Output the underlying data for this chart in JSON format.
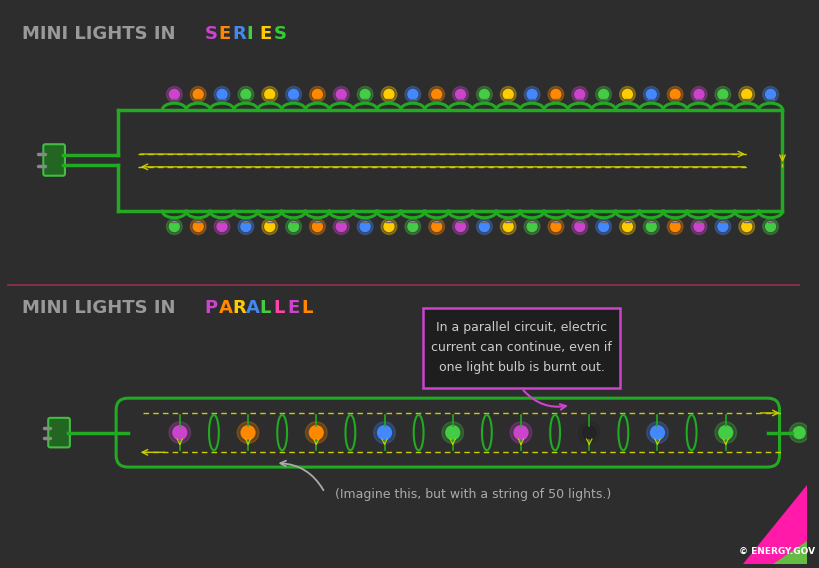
{
  "bg_color": "#2d2d2d",
  "separator_color": "#b03060",
  "wire_color": "#22aa22",
  "wire_glow": "#44ff44",
  "arrow_color": "#cccc00",
  "plug_color": "#227722",
  "text_color": "#aaaaaa",
  "box_border": "#cc44cc",
  "title1_plain": "MINI LIGHTS IN ",
  "title1_word": "SERIES",
  "title1_letter_colors": [
    "#cc44cc",
    "#ff8800",
    "#4488ee",
    "#44cc44",
    "#ffcc00",
    "#33cc33"
  ],
  "title2_plain": "MINI LIGHTS IN ",
  "title2_word": "PARALLEL",
  "title2_letter_colors": [
    "#cc44cc",
    "#ff8800",
    "#ffcc00",
    "#4488ee",
    "#44cc44",
    "#ff44aa",
    "#cc44cc",
    "#ff8800"
  ],
  "note_text": "In a parallel circuit, electric\ncurrent can continue, even if\none light bulb is burnt out.",
  "imagine_text": "(Imagine this, but with a string of 50 lights.)",
  "energy_text": "© ENERGY.GOV",
  "colors_top": [
    "#cc44cc",
    "#ff8800",
    "#4488ff",
    "#44cc44",
    "#ffcc00",
    "#4488ff",
    "#ff8800",
    "#cc44cc",
    "#44cc44",
    "#ffcc00",
    "#4488ff",
    "#ff8800",
    "#cc44cc",
    "#44cc44",
    "#ffcc00",
    "#4488ff",
    "#ff8800",
    "#cc44cc",
    "#44cc44",
    "#ffcc00",
    "#4488ff",
    "#ff8800",
    "#cc44cc",
    "#44cc44",
    "#ffcc00",
    "#4488ff",
    "#ff8800",
    "#cc44cc"
  ],
  "colors_bot": [
    "#44cc44",
    "#ff8800",
    "#cc44cc",
    "#4488ff",
    "#ffcc00",
    "#44cc44",
    "#ff8800",
    "#cc44cc",
    "#4488ff",
    "#ffcc00",
    "#44cc44",
    "#ff8800",
    "#cc44cc",
    "#4488ff",
    "#ffcc00",
    "#44cc44",
    "#ff8800",
    "#cc44cc",
    "#4488ff",
    "#ffcc00",
    "#44cc44",
    "#ff8800",
    "#cc44cc",
    "#4488ff",
    "#ffcc00",
    "#44cc44",
    "#ff8800",
    "#cc44cc"
  ],
  "par_colors": [
    "#cc44cc",
    "#ff8800",
    "#ff8800",
    "#4488ff",
    "#44cc44",
    "#cc44cc",
    "#ff8800",
    "#4488ff",
    "#44cc44"
  ]
}
